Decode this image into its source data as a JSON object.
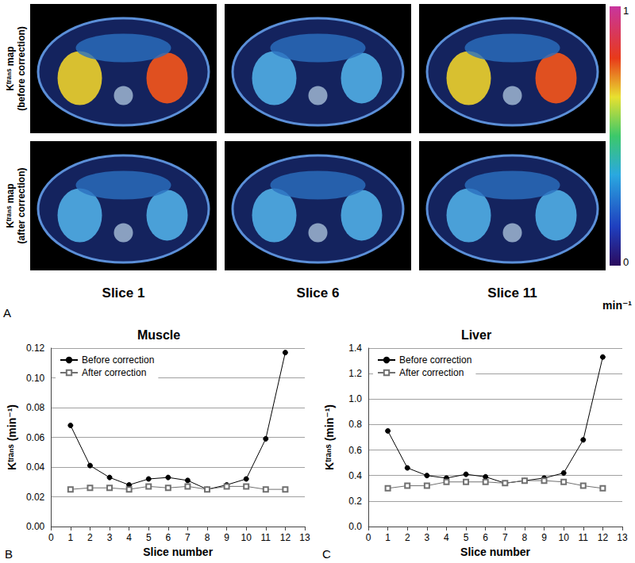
{
  "panel_a": {
    "label": "A",
    "row_labels": [
      "Kᵗʳᵃⁿˢ map (before correction)",
      "Kᵗʳᵃⁿˢ map (after correction)"
    ],
    "slice_labels": [
      "Slice 1",
      "Slice 6",
      "Slice 11"
    ],
    "colorbar": {
      "range": [
        0,
        1
      ],
      "ticks": [
        0,
        1
      ],
      "unit": "min⁻¹"
    }
  },
  "chart_data": [
    {
      "type": "line",
      "title": "Muscle",
      "annotations": [
        "B"
      ],
      "xlabel": "Slice number",
      "ylabel": "Kᵗʳᵃⁿˢ (min⁻¹)",
      "x": [
        1,
        2,
        3,
        4,
        5,
        6,
        7,
        8,
        9,
        10,
        11,
        12
      ],
      "series": [
        {
          "name": "Before correction",
          "color": "#000000",
          "marker": "circle",
          "line_style": "solid",
          "values": [
            0.068,
            0.041,
            0.033,
            0.028,
            0.032,
            0.033,
            0.031,
            0.025,
            0.028,
            0.032,
            0.059,
            0.117
          ]
        },
        {
          "name": "After correction",
          "color": "#707070",
          "marker": "open_square",
          "line_style": "solid",
          "values": [
            0.025,
            0.026,
            0.026,
            0.025,
            0.027,
            0.026,
            0.027,
            0.025,
            0.027,
            0.027,
            0.025,
            0.025
          ]
        }
      ],
      "xlim": [
        0,
        13
      ],
      "xticks": [
        0,
        1,
        2,
        3,
        4,
        5,
        6,
        7,
        8,
        9,
        10,
        11,
        12,
        13
      ],
      "ylim": [
        0,
        0.12
      ],
      "yticks": [
        {
          "value": 0,
          "label": "0.00"
        },
        0.02,
        0.04,
        0.06,
        0.08,
        {
          "value": 0.1,
          "label": "0.10"
        },
        0.12
      ],
      "grid": true,
      "legend": "top-left"
    },
    {
      "type": "line",
      "title": "Liver",
      "annotations": [
        "C"
      ],
      "xlabel": "Slice number",
      "ylabel": "Kᵗʳᵃⁿˢ (min⁻¹)",
      "x": [
        1,
        2,
        3,
        4,
        5,
        6,
        7,
        8,
        9,
        10,
        11,
        12
      ],
      "series": [
        {
          "name": "Before correction",
          "color": "#000000",
          "marker": "circle",
          "line_style": "solid",
          "values": [
            0.75,
            0.46,
            0.4,
            0.38,
            0.41,
            0.39,
            0.34,
            0.36,
            0.38,
            0.42,
            0.68,
            1.33
          ]
        },
        {
          "name": "After correction",
          "color": "#707070",
          "marker": "open_square",
          "line_style": "solid",
          "values": [
            0.3,
            0.32,
            0.32,
            0.35,
            0.35,
            0.35,
            0.34,
            0.36,
            0.36,
            0.35,
            0.32,
            0.3
          ]
        }
      ],
      "xlim": [
        0,
        13
      ],
      "xticks": [
        0,
        1,
        2,
        3,
        4,
        5,
        6,
        7,
        8,
        9,
        10,
        11,
        12,
        13
      ],
      "ylim": [
        0,
        1.4
      ],
      "yticks": [
        {
          "value": 0,
          "label": "0.0"
        },
        0.2,
        0.4,
        0.6,
        0.8,
        {
          "value": 1,
          "label": "1.0"
        },
        1.2,
        1.4
      ],
      "grid": true,
      "legend": "top-left"
    }
  ]
}
